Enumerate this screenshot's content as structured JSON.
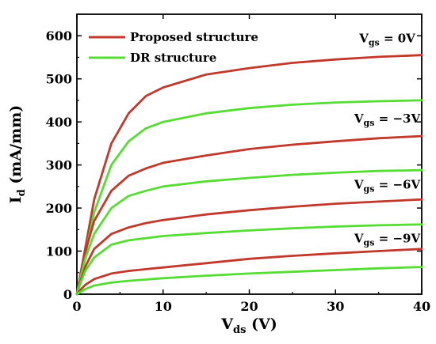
{
  "chart_data": {
    "type": "line",
    "xlabel": {
      "main": "V",
      "sub": "ds",
      "suffix": " (V)"
    },
    "ylabel": {
      "main": "I",
      "sub": "d",
      "suffix": " (mA/mm)"
    },
    "xlim": [
      0,
      40
    ],
    "ylim": [
      0,
      650
    ],
    "xticks": [
      0,
      10,
      20,
      30,
      40
    ],
    "yticks": [
      0,
      100,
      200,
      300,
      400,
      500,
      600
    ],
    "grid": false,
    "legend": {
      "placement": "top-left",
      "entries": [
        {
          "label": "Proposed structure",
          "color": "#c0392b"
        },
        {
          "label": "DR structure",
          "color": "#55dd33"
        }
      ]
    },
    "annotations": [
      {
        "main": "V",
        "sub": "gs",
        "value": " = 0V",
        "x": 36,
        "y": 585
      },
      {
        "main": "V",
        "sub": "gs",
        "value": " = −3V",
        "x": 36,
        "y": 398
      },
      {
        "main": "V",
        "sub": "gs",
        "value": " = −6V",
        "x": 36,
        "y": 245
      },
      {
        "main": "V",
        "sub": "gs",
        "value": " = −9V",
        "x": 36,
        "y": 120
      }
    ],
    "series": [
      {
        "group": "Proposed structure",
        "vgs": "0V",
        "color": "#c0392b",
        "x": [
          0,
          0.5,
          1,
          2,
          4,
          6,
          8,
          10,
          15,
          20,
          25,
          30,
          35,
          40
        ],
        "y": [
          0,
          55,
          110,
          220,
          350,
          420,
          460,
          480,
          510,
          525,
          537,
          545,
          551,
          555
        ]
      },
      {
        "group": "DR structure",
        "vgs": "0V",
        "color": "#55dd33",
        "x": [
          0,
          0.5,
          1,
          2,
          4,
          6,
          8,
          10,
          15,
          20,
          25,
          30,
          35,
          40
        ],
        "y": [
          0,
          45,
          95,
          190,
          300,
          355,
          385,
          400,
          420,
          432,
          440,
          445,
          448,
          450
        ]
      },
      {
        "group": "Proposed structure",
        "vgs": "-3V",
        "color": "#c0392b",
        "x": [
          0,
          0.5,
          1,
          2,
          4,
          6,
          8,
          10,
          15,
          20,
          25,
          30,
          35,
          40
        ],
        "y": [
          0,
          55,
          100,
          170,
          240,
          275,
          292,
          305,
          322,
          337,
          347,
          355,
          362,
          367
        ]
      },
      {
        "group": "DR structure",
        "vgs": "-3V",
        "color": "#55dd33",
        "x": [
          0,
          0.5,
          1,
          2,
          4,
          6,
          8,
          10,
          15,
          20,
          25,
          30,
          35,
          40
        ],
        "y": [
          0,
          45,
          85,
          140,
          200,
          228,
          240,
          250,
          262,
          270,
          277,
          282,
          286,
          288
        ]
      },
      {
        "group": "Proposed structure",
        "vgs": "-6V",
        "color": "#c0392b",
        "x": [
          0,
          0.5,
          1,
          2,
          4,
          6,
          8,
          10,
          15,
          20,
          25,
          30,
          35,
          40
        ],
        "y": [
          0,
          35,
          65,
          105,
          140,
          155,
          165,
          172,
          185,
          195,
          203,
          210,
          215,
          220
        ]
      },
      {
        "group": "DR structure",
        "vgs": "-6V",
        "color": "#55dd33",
        "x": [
          0,
          0.5,
          1,
          2,
          4,
          6,
          8,
          10,
          15,
          20,
          25,
          30,
          35,
          40
        ],
        "y": [
          0,
          30,
          55,
          85,
          115,
          125,
          130,
          135,
          142,
          148,
          153,
          157,
          160,
          162
        ]
      },
      {
        "group": "Proposed structure",
        "vgs": "-9V",
        "color": "#c0392b",
        "x": [
          0,
          0.5,
          1,
          2,
          4,
          6,
          8,
          10,
          15,
          20,
          25,
          30,
          35,
          40
        ],
        "y": [
          0,
          12,
          22,
          35,
          48,
          54,
          58,
          62,
          72,
          82,
          89,
          95,
          100,
          105
        ]
      },
      {
        "group": "DR structure",
        "vgs": "-9V",
        "color": "#55dd33",
        "x": [
          0,
          0.5,
          1,
          2,
          4,
          6,
          8,
          10,
          15,
          20,
          25,
          30,
          35,
          40
        ],
        "y": [
          0,
          6,
          12,
          20,
          27,
          31,
          34,
          37,
          43,
          48,
          52,
          56,
          60,
          63
        ]
      }
    ]
  }
}
